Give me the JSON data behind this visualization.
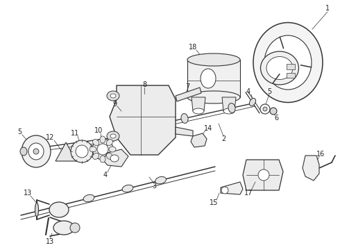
{
  "bg_color": "#ffffff",
  "line_color": "#333333",
  "figsize": [
    4.9,
    3.6
  ],
  "dpi": 100,
  "label_fontsize": 7,
  "label_color": "#222222"
}
